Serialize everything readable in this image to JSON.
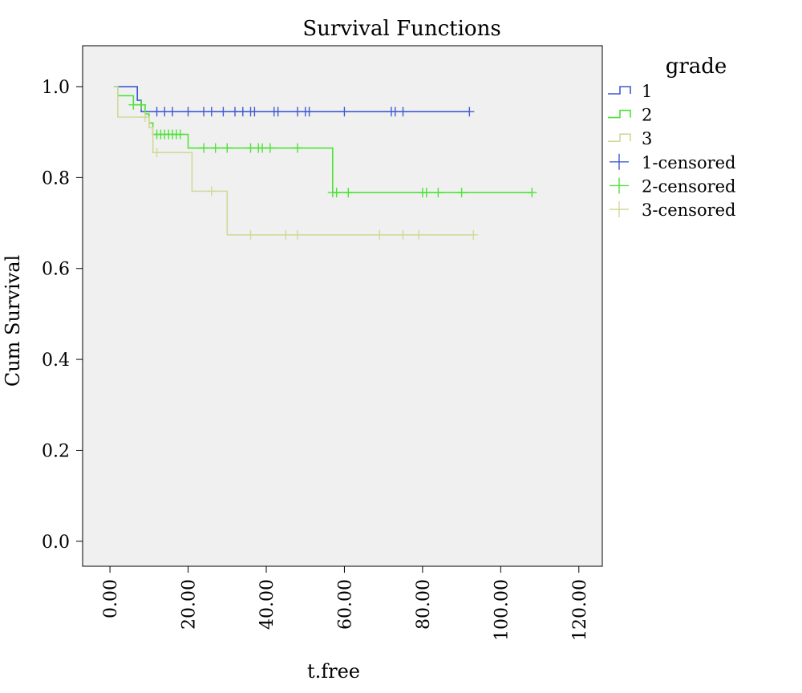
{
  "chart_data": {
    "type": "line",
    "title": "Survival Functions",
    "xlabel": "t.free",
    "ylabel": "Cum Survival",
    "xlim": [
      -7,
      126
    ],
    "ylim": [
      -0.055,
      1.09
    ],
    "x_ticks": [
      0,
      20,
      40,
      60,
      80,
      100,
      120
    ],
    "x_tick_labels": [
      "0.00",
      "20.00",
      "40.00",
      "60.00",
      "80.00",
      "100.00",
      "120.00"
    ],
    "y_ticks": [
      0.0,
      0.2,
      0.4,
      0.6,
      0.8,
      1.0
    ],
    "y_tick_labels": [
      "0.0",
      "0.2",
      "0.4",
      "0.6",
      "0.8",
      "1.0"
    ],
    "grid": false,
    "legend_title": "grade",
    "legend_position": "right",
    "series": [
      {
        "name": "1",
        "color": "#3f5bd1",
        "steps": [
          [
            1,
            1.0
          ],
          [
            7,
            0.97
          ],
          [
            8,
            0.945
          ],
          [
            92,
            0.945
          ]
        ],
        "censored_name": "1-censored",
        "censored_x": [
          12,
          14,
          16,
          20,
          24,
          26,
          29,
          32,
          34,
          36,
          37,
          42,
          43,
          48,
          50,
          51,
          60,
          72,
          73,
          75,
          92
        ],
        "censored_y": 0.945
      },
      {
        "name": "2",
        "color": "#4ee23a",
        "steps": [
          [
            1,
            1.0
          ],
          [
            2,
            0.98
          ],
          [
            6,
            0.96
          ],
          [
            9,
            0.94
          ],
          [
            10,
            0.92
          ],
          [
            11,
            0.895
          ],
          [
            20,
            0.865
          ],
          [
            57,
            0.767
          ],
          [
            108,
            0.767
          ]
        ],
        "censored_name": "2-censored",
        "censored_points": [
          [
            6,
            0.96
          ],
          [
            8,
            0.96
          ],
          [
            12,
            0.895
          ],
          [
            13,
            0.895
          ],
          [
            14,
            0.895
          ],
          [
            15,
            0.895
          ],
          [
            16,
            0.895
          ],
          [
            17,
            0.895
          ],
          [
            18,
            0.895
          ],
          [
            24,
            0.865
          ],
          [
            27,
            0.865
          ],
          [
            30,
            0.865
          ],
          [
            36,
            0.865
          ],
          [
            38,
            0.865
          ],
          [
            39,
            0.865
          ],
          [
            41,
            0.865
          ],
          [
            48,
            0.865
          ],
          [
            57,
            0.767
          ],
          [
            58,
            0.767
          ],
          [
            61,
            0.767
          ],
          [
            80,
            0.767
          ],
          [
            81,
            0.767
          ],
          [
            84,
            0.767
          ],
          [
            90,
            0.767
          ],
          [
            108,
            0.767
          ]
        ]
      },
      {
        "name": "3",
        "color": "#d3d89a",
        "steps": [
          [
            1,
            1.0
          ],
          [
            2,
            0.933
          ],
          [
            10,
            0.91
          ],
          [
            11,
            0.855
          ],
          [
            21,
            0.77
          ],
          [
            30,
            0.674
          ],
          [
            93,
            0.674
          ]
        ],
        "censored_name": "3-censored",
        "censored_points": [
          [
            9,
            0.933
          ],
          [
            12,
            0.855
          ],
          [
            26,
            0.77
          ],
          [
            36,
            0.674
          ],
          [
            45,
            0.674
          ],
          [
            48,
            0.674
          ],
          [
            69,
            0.674
          ],
          [
            75,
            0.674
          ],
          [
            79,
            0.674
          ],
          [
            93,
            0.674
          ]
        ]
      }
    ]
  }
}
